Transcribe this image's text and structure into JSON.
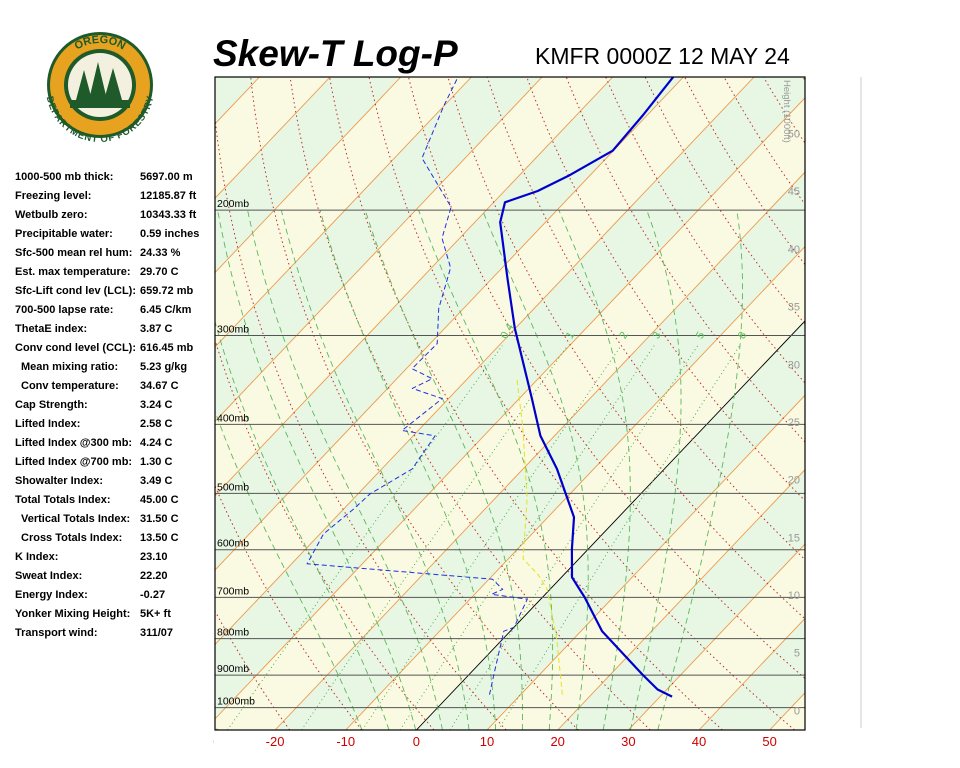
{
  "logo": {
    "top_text": "OREGON",
    "bottom_text": "DEPARTMENT OF FORESTRY"
  },
  "indices": [
    [
      "1000-500 mb thick:",
      "5697.00 m"
    ],
    [
      "Freezing level:",
      "12185.87 ft"
    ],
    [
      "Wetbulb zero:",
      "10343.33 ft"
    ],
    [
      "Precipitable water:",
      "0.59 inches"
    ],
    [
      "Sfc-500 mean rel hum:",
      "24.33 %"
    ],
    [
      "Est. max temperature:",
      "29.70 C"
    ],
    [
      "Sfc-Lift cond lev (LCL):",
      "659.72 mb"
    ],
    [
      "700-500 lapse rate:",
      "6.45 C/km"
    ],
    [
      "ThetaE index:",
      "3.87 C"
    ],
    [
      "Conv cond level (CCL):",
      "616.45 mb"
    ],
    [
      "Mean mixing ratio:",
      "5.23 g/kg"
    ],
    [
      "Conv temperature:",
      "34.67 C"
    ],
    [
      "Cap Strength:",
      "3.24 C"
    ],
    [
      "Lifted Index:",
      "2.58 C"
    ],
    [
      "Lifted Index @300 mb:",
      "4.24 C"
    ],
    [
      "Lifted Index @700 mb:",
      "1.30 C"
    ],
    [
      "Showalter Index:",
      "3.49 C"
    ],
    [
      "Total Totals Index:",
      "45.00 C"
    ],
    [
      "Vertical Totals Index:",
      "31.50 C"
    ],
    [
      "Cross Totals Index:",
      "13.50 C"
    ],
    [
      "K Index:",
      "23.10"
    ],
    [
      "Sweat Index:",
      "22.20"
    ],
    [
      "Energy Index:",
      "-0.27"
    ],
    [
      "Yonker Mixing Height:",
      "5K+ ft"
    ],
    [
      "Transport wind:",
      "311/07"
    ]
  ],
  "chart_data": {
    "type": "skewt",
    "title": "Skew-T Log-P",
    "subtitle": "KMFR 0000Z 12 MAY 24",
    "xlim": [
      -28.5,
      55
    ],
    "xticks": [
      -30,
      -20,
      -10,
      0,
      10,
      20,
      30,
      40,
      50
    ],
    "ylim": [
      1075,
      130
    ],
    "log_y": true,
    "yticks": [
      {
        "value": 1000,
        "label": "1000mb"
      },
      {
        "value": 900,
        "label": "900mb"
      },
      {
        "value": 800,
        "label": "800mb"
      },
      {
        "value": 700,
        "label": "700mb"
      },
      {
        "value": 600,
        "label": "600mb"
      },
      {
        "value": 500,
        "label": "500mb"
      },
      {
        "value": 400,
        "label": "400mb"
      },
      {
        "value": 300,
        "label": "300mb"
      },
      {
        "value": 200,
        "label": "200mb"
      }
    ],
    "y2label": "Height (1000ft)",
    "y2lim": [
      -1.7,
      54.9
    ],
    "y2ticks": [
      0,
      5,
      10,
      15,
      20,
      25,
      30,
      35,
      40,
      45,
      50
    ],
    "mixing_ratio_ticks": [
      0.4,
      1,
      2,
      3,
      5,
      8
    ],
    "band_colors": [
      "#e8f6e4",
      "#fafae2"
    ],
    "series": [
      {
        "name": null,
        "color": "#0000cc",
        "dash": false,
        "pressure": [
          965,
          943,
          898,
          781,
          700,
          656,
          599,
          540,
          462,
          415,
          368,
          293,
          249,
          208,
          195,
          188,
          179,
          165,
          147,
          129
        ],
        "values": [
          31.7,
          28.7,
          24.5,
          13.0,
          6.0,
          1.5,
          -2.3,
          -6.3,
          -15.2,
          -22.0,
          -28.2,
          -40.1,
          -47.9,
          -56.4,
          -58.4,
          -55.3,
          -53.0,
          -50.1,
          -50.6,
          -51.5
        ]
      },
      {
        "name": null,
        "color": "#1f2fe0",
        "dash": true,
        "pressure": [
          959,
          898,
          781,
          771,
          704,
          693,
          682,
          660,
          628,
          570,
          526,
          501,
          462,
          415,
          408,
          368,
          356,
          345,
          334,
          308,
          275,
          241,
          219,
          198,
          169,
          143,
          130
        ],
        "values": [
          5.6,
          3.5,
          -0.9,
          0.0,
          -1.9,
          -7.6,
          -6.7,
          -9.5,
          -37.8,
          -39.5,
          -38.6,
          -38.3,
          -35.7,
          -36.9,
          -42.3,
          -40.9,
          -46.5,
          -45.0,
          -49.2,
          -49.0,
          -53.5,
          -57.3,
          -62.5,
          -65.4,
          -76.1,
          -80.0,
          -81.9
        ]
      },
      {
        "name": null,
        "color": "#e6e020",
        "dash": true,
        "pressure": [
          959,
          802,
          682,
          650,
          618,
          509,
          405,
          345
        ],
        "values": [
          15.9,
          7.7,
          -0.4,
          -3.7,
          -7.9,
          -15.4,
          -25.5,
          -33.0
        ]
      }
    ]
  }
}
